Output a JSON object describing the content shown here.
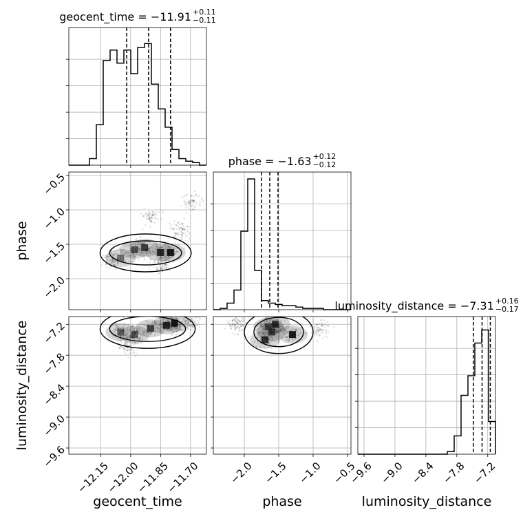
{
  "chart_data": {
    "type": "corner",
    "parameters": [
      "geocent_time",
      "phase",
      "luminosity_distance"
    ],
    "titles": [
      {
        "main": "geocent_time = −11.91",
        "plus": "+0.11",
        "minus": "−0.11"
      },
      {
        "main": "phase = −1.63",
        "plus": "+0.12",
        "minus": "−0.12"
      },
      {
        "main": "luminosity_distance = −7.31",
        "plus": "+0.16",
        "minus": "−0.17"
      }
    ],
    "axes": {
      "geocent_time": {
        "range": [
          -12.31,
          -11.62
        ],
        "ticks": [
          -12.15,
          -12.0,
          -11.85,
          -11.7
        ],
        "tick_labels": [
          "−12.15",
          "−12.00",
          "−11.85",
          "−11.70"
        ]
      },
      "phase": {
        "range": [
          -2.45,
          -0.45
        ],
        "ticks": [
          -2.0,
          -1.5,
          -1.0,
          -0.5
        ],
        "tick_labels": [
          "−2.0",
          "−1.5",
          "−1.0",
          "−0.5"
        ]
      },
      "luminosity_distance": {
        "range": [
          -9.72,
          -7.05
        ],
        "ticks": [
          -9.6,
          -9.0,
          -8.4,
          -7.8,
          -7.2
        ],
        "tick_labels": [
          "−9.6",
          "−9.0",
          "−8.4",
          "−7.8",
          "−7.2"
        ]
      }
    },
    "quantiles": {
      "geocent_time": [
        -12.02,
        -11.91,
        -11.8
      ],
      "phase": [
        -1.75,
        -1.63,
        -1.51
      ],
      "luminosity_distance": [
        -7.48,
        -7.31,
        -7.15
      ]
    },
    "histograms": {
      "geocent_time": {
        "edges_range": [
          -12.31,
          -11.62
        ],
        "bins": 20,
        "counts": [
          0,
          0,
          0,
          0.05,
          0.31,
          0.8,
          0.88,
          0.78,
          0.88,
          0.7,
          0.9,
          0.93,
          0.62,
          0.43,
          0.29,
          0.12,
          0.05,
          0.03,
          0.02,
          0
        ]
      },
      "phase": {
        "edges_range": [
          -2.45,
          -0.45
        ],
        "bins": 20,
        "counts": [
          0,
          0.01,
          0.05,
          0.15,
          0.6,
          1.0,
          0.3,
          0.07,
          0.05,
          0.04,
          0.03,
          0.03,
          0.02,
          0.01,
          0.01,
          0.01,
          0,
          0,
          0,
          0
        ]
      },
      "luminosity_distance": {
        "edges_range": [
          -9.72,
          -7.05
        ],
        "bins": 20,
        "counts": [
          0,
          0,
          0,
          0,
          0,
          0,
          0,
          0,
          0,
          0,
          0,
          0,
          0,
          0.02,
          0.14,
          0.45,
          0.6,
          0.85,
          0.95,
          0.25
        ]
      }
    },
    "sample_clusters": [
      {
        "pair": [
          "geocent_time",
          "phase"
        ],
        "points": [
          [
            -12.05,
            -1.7
          ],
          [
            -11.98,
            -1.58
          ],
          [
            -11.93,
            -1.55
          ],
          [
            -11.85,
            -1.62
          ],
          [
            -11.8,
            -1.62
          ],
          [
            -12.1,
            -1.72
          ],
          [
            -11.75,
            -1.3
          ],
          [
            -11.7,
            -0.9
          ],
          [
            -11.85,
            -1.8
          ],
          [
            -11.9,
            -1.1
          ]
        ]
      },
      {
        "pair": [
          "geocent_time",
          "luminosity_distance"
        ],
        "points": [
          [
            -12.05,
            -7.35
          ],
          [
            -11.98,
            -7.4
          ],
          [
            -11.9,
            -7.28
          ],
          [
            -11.82,
            -7.22
          ],
          [
            -11.78,
            -7.18
          ],
          [
            -12.02,
            -7.6
          ],
          [
            -11.7,
            -7.15
          ]
        ]
      },
      {
        "pair": [
          "phase",
          "luminosity_distance"
        ],
        "points": [
          [
            -1.65,
            -7.25
          ],
          [
            -1.6,
            -7.35
          ],
          [
            -1.55,
            -7.2
          ],
          [
            -1.7,
            -7.5
          ],
          [
            -1.3,
            -7.4
          ],
          [
            -0.9,
            -7.3
          ],
          [
            -2.1,
            -7.2
          ]
        ]
      }
    ]
  }
}
